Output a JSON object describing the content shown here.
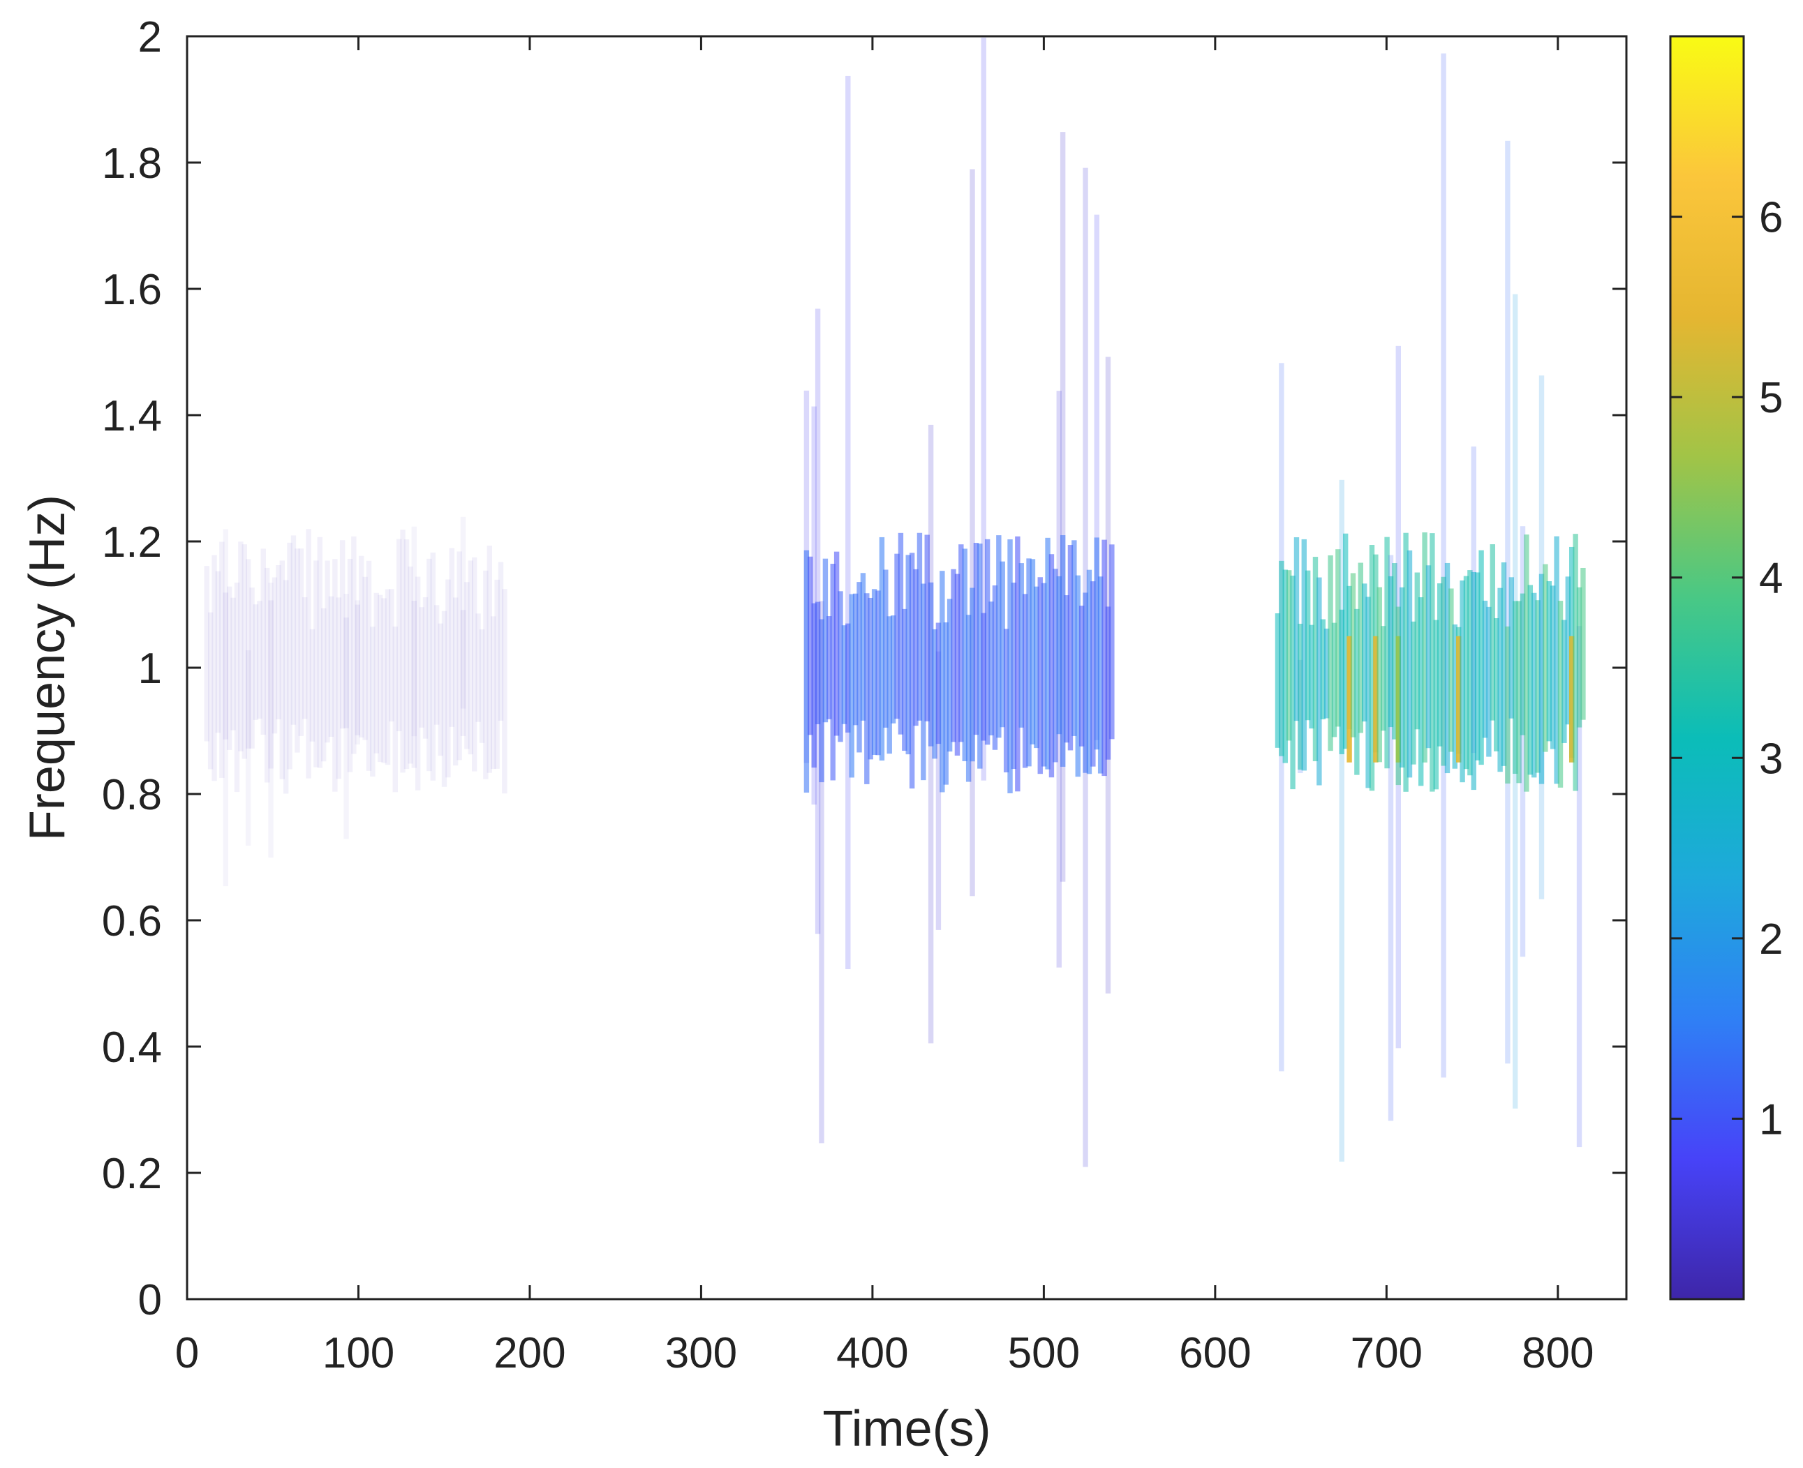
{
  "chart_data": {
    "type": "heatmap",
    "title": "",
    "xlabel": "Time(s)",
    "ylabel": "Frequency (Hz)",
    "xlim": [
      0,
      840
    ],
    "ylim": [
      0,
      2
    ],
    "x_ticks": [
      0,
      100,
      200,
      300,
      400,
      500,
      600,
      700,
      800
    ],
    "y_ticks": [
      0,
      0.2,
      0.4,
      0.6,
      0.8,
      1,
      1.2,
      1.4,
      1.6,
      1.8,
      2
    ],
    "x_tick_labels": [
      "0",
      "100",
      "200",
      "300",
      "400",
      "500",
      "600",
      "700",
      "800"
    ],
    "y_tick_labels": [
      "0",
      "0.2",
      "0.4",
      "0.6",
      "0.8",
      "1",
      "1.2",
      "1.4",
      "1.6",
      "1.8",
      "2"
    ],
    "colormap": "parula",
    "colorbar": {
      "range": [
        0,
        7
      ],
      "ticks": [
        1,
        2,
        3,
        4,
        5,
        6
      ],
      "tick_labels": [
        "1",
        "2",
        "3",
        "4",
        "5",
        "6"
      ],
      "colors": [
        "#3e26a8",
        "#4743f8",
        "#2f80f5",
        "#1ea9db",
        "#0bbdb8",
        "#49c885",
        "#a1c447",
        "#e5b631",
        "#fbc63b",
        "#f9fb14"
      ]
    },
    "grid": false,
    "legend": "none",
    "segments": [
      {
        "name": "",
        "x_range": [
          10,
          185
        ],
        "freq_center": 1.0,
        "freq_spread": [
          0.4,
          1.3
        ],
        "intensity": 0.15
      },
      {
        "name": "",
        "x_range": [
          360,
          540
        ],
        "freq_center": 1.0,
        "freq_spread": [
          0.1,
          2.0
        ],
        "intensity": 1.2
      },
      {
        "name": "",
        "x_range": [
          635,
          815
        ],
        "freq_center": 1.0,
        "freq_spread": [
          0.2,
          2.0
        ],
        "intensity": 3.2
      }
    ]
  }
}
